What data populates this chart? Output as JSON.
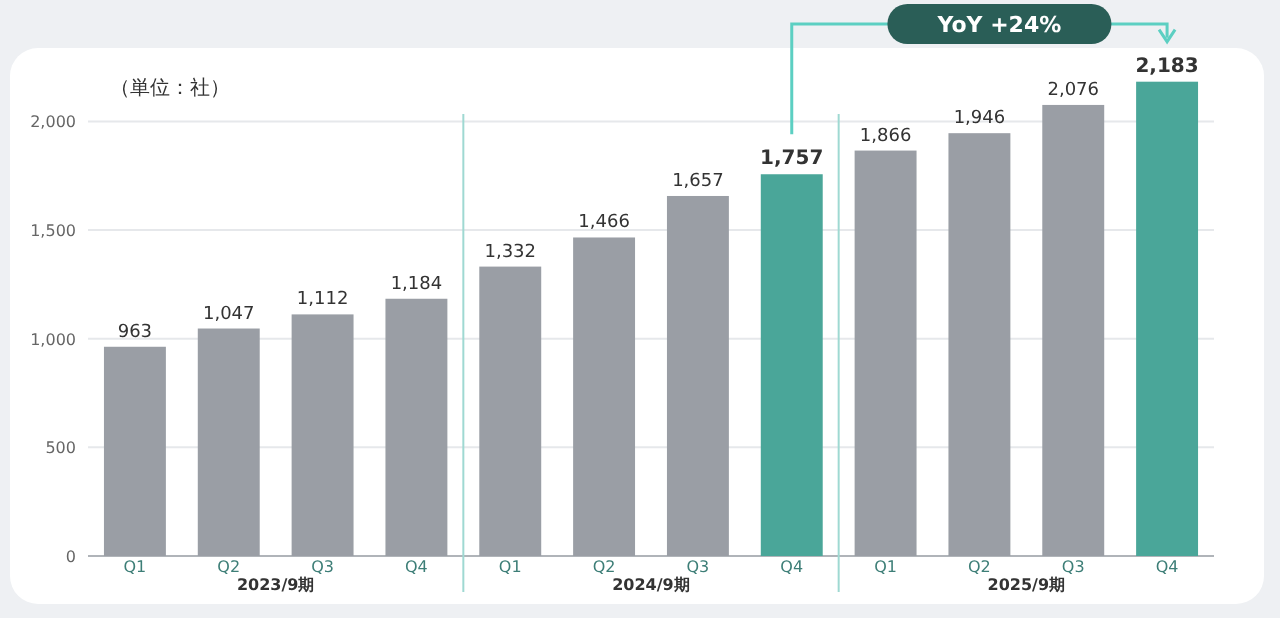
{
  "chart_data": {
    "type": "bar",
    "ylabel": "（単位：社）",
    "categories": [
      "Q1",
      "Q2",
      "Q3",
      "Q4",
      "Q1",
      "Q2",
      "Q3",
      "Q4",
      "Q1",
      "Q2",
      "Q3",
      "Q4"
    ],
    "values": [
      963,
      1047,
      1112,
      1184,
      1332,
      1466,
      1657,
      1757,
      1866,
      1946,
      2076,
      2183
    ],
    "colors": [
      "#9a9ea5",
      "#9a9ea5",
      "#9a9ea5",
      "#9a9ea5",
      "#9a9ea5",
      "#9a9ea5",
      "#9a9ea5",
      "#4aa699",
      "#9a9ea5",
      "#9a9ea5",
      "#9a9ea5",
      "#4aa699"
    ],
    "value_labels": [
      "963",
      "1,047",
      "1,112",
      "1,184",
      "1,332",
      "1,466",
      "1,657",
      "1,757",
      "1,866",
      "1,946",
      "2,076",
      "2,183"
    ],
    "ylim": [
      0,
      2200
    ],
    "yticks": [
      0,
      500,
      {
        "value": 1000,
        "label": "1,000"
      },
      {
        "value": 1500,
        "label": "1,500"
      },
      {
        "value": 2000,
        "label": "2,000"
      }
    ],
    "grid": "y",
    "annotations": [
      "YoY +24%",
      "2023/9期",
      "2024/9期",
      "2025/9期"
    ]
  }
}
